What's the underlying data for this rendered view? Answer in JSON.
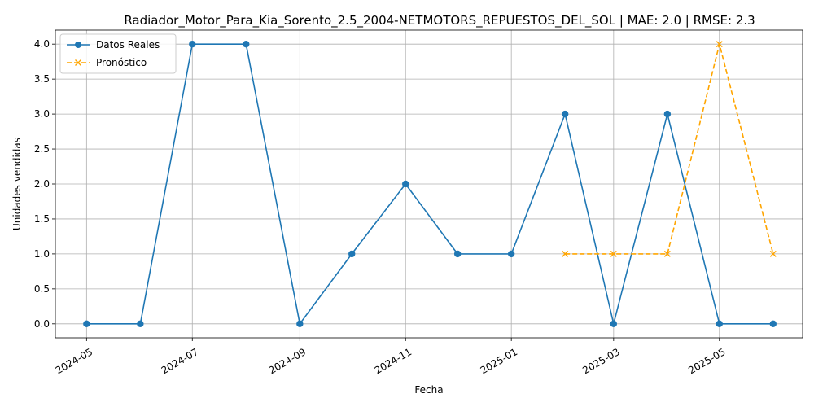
{
  "chart_data": {
    "type": "line",
    "title": "Radiador_Motor_Para_Kia_Sorento_2.5_2004-NETMOTORS_REPUESTOS_DEL_SOL | MAE: 2.0 | RMSE: 2.3",
    "xlabel": "Fecha",
    "ylabel": "Unidades vendidas",
    "xlim": [
      "2024-04-13",
      "2025-06-18"
    ],
    "ylim": [
      -0.2,
      4.2
    ],
    "x_ticks": [
      "2024-05-01",
      "2024-07-01",
      "2024-09-01",
      "2024-11-01",
      "2025-01-01",
      "2025-03-01",
      "2025-05-01"
    ],
    "x_tick_labels": [
      "2024-05",
      "2024-07",
      "2024-09",
      "2024-11",
      "2025-01",
      "2025-03",
      "2025-05"
    ],
    "y_ticks": [
      0.0,
      0.5,
      1.0,
      1.5,
      2.0,
      2.5,
      3.0,
      3.5,
      4.0
    ],
    "y_tick_labels": [
      "0.0",
      "0.5",
      "1.0",
      "1.5",
      "2.0",
      "2.5",
      "3.0",
      "3.5",
      "4.0"
    ],
    "grid": true,
    "legend_position": "top-left",
    "series": [
      {
        "name": "Datos Reales",
        "color": "#1f77b4",
        "style": "solid",
        "marker": "circle",
        "points": [
          {
            "x": "2024-05-01",
            "y": 0
          },
          {
            "x": "2024-06-01",
            "y": 0
          },
          {
            "x": "2024-07-01",
            "y": 4
          },
          {
            "x": "2024-08-01",
            "y": 4
          },
          {
            "x": "2024-09-01",
            "y": 0
          },
          {
            "x": "2024-10-01",
            "y": 1
          },
          {
            "x": "2024-11-01",
            "y": 2
          },
          {
            "x": "2024-12-01",
            "y": 1
          },
          {
            "x": "2025-01-01",
            "y": 1
          },
          {
            "x": "2025-02-01",
            "y": 3
          },
          {
            "x": "2025-03-01",
            "y": 0
          },
          {
            "x": "2025-04-01",
            "y": 3
          },
          {
            "x": "2025-05-01",
            "y": 0
          },
          {
            "x": "2025-06-01",
            "y": 0
          }
        ]
      },
      {
        "name": "Pronóstico",
        "color": "#ffa500",
        "style": "dashed",
        "marker": "x",
        "points": [
          {
            "x": "2025-02-01",
            "y": 1
          },
          {
            "x": "2025-03-01",
            "y": 1
          },
          {
            "x": "2025-04-01",
            "y": 1
          },
          {
            "x": "2025-05-01",
            "y": 4
          },
          {
            "x": "2025-06-01",
            "y": 1
          }
        ]
      }
    ]
  }
}
